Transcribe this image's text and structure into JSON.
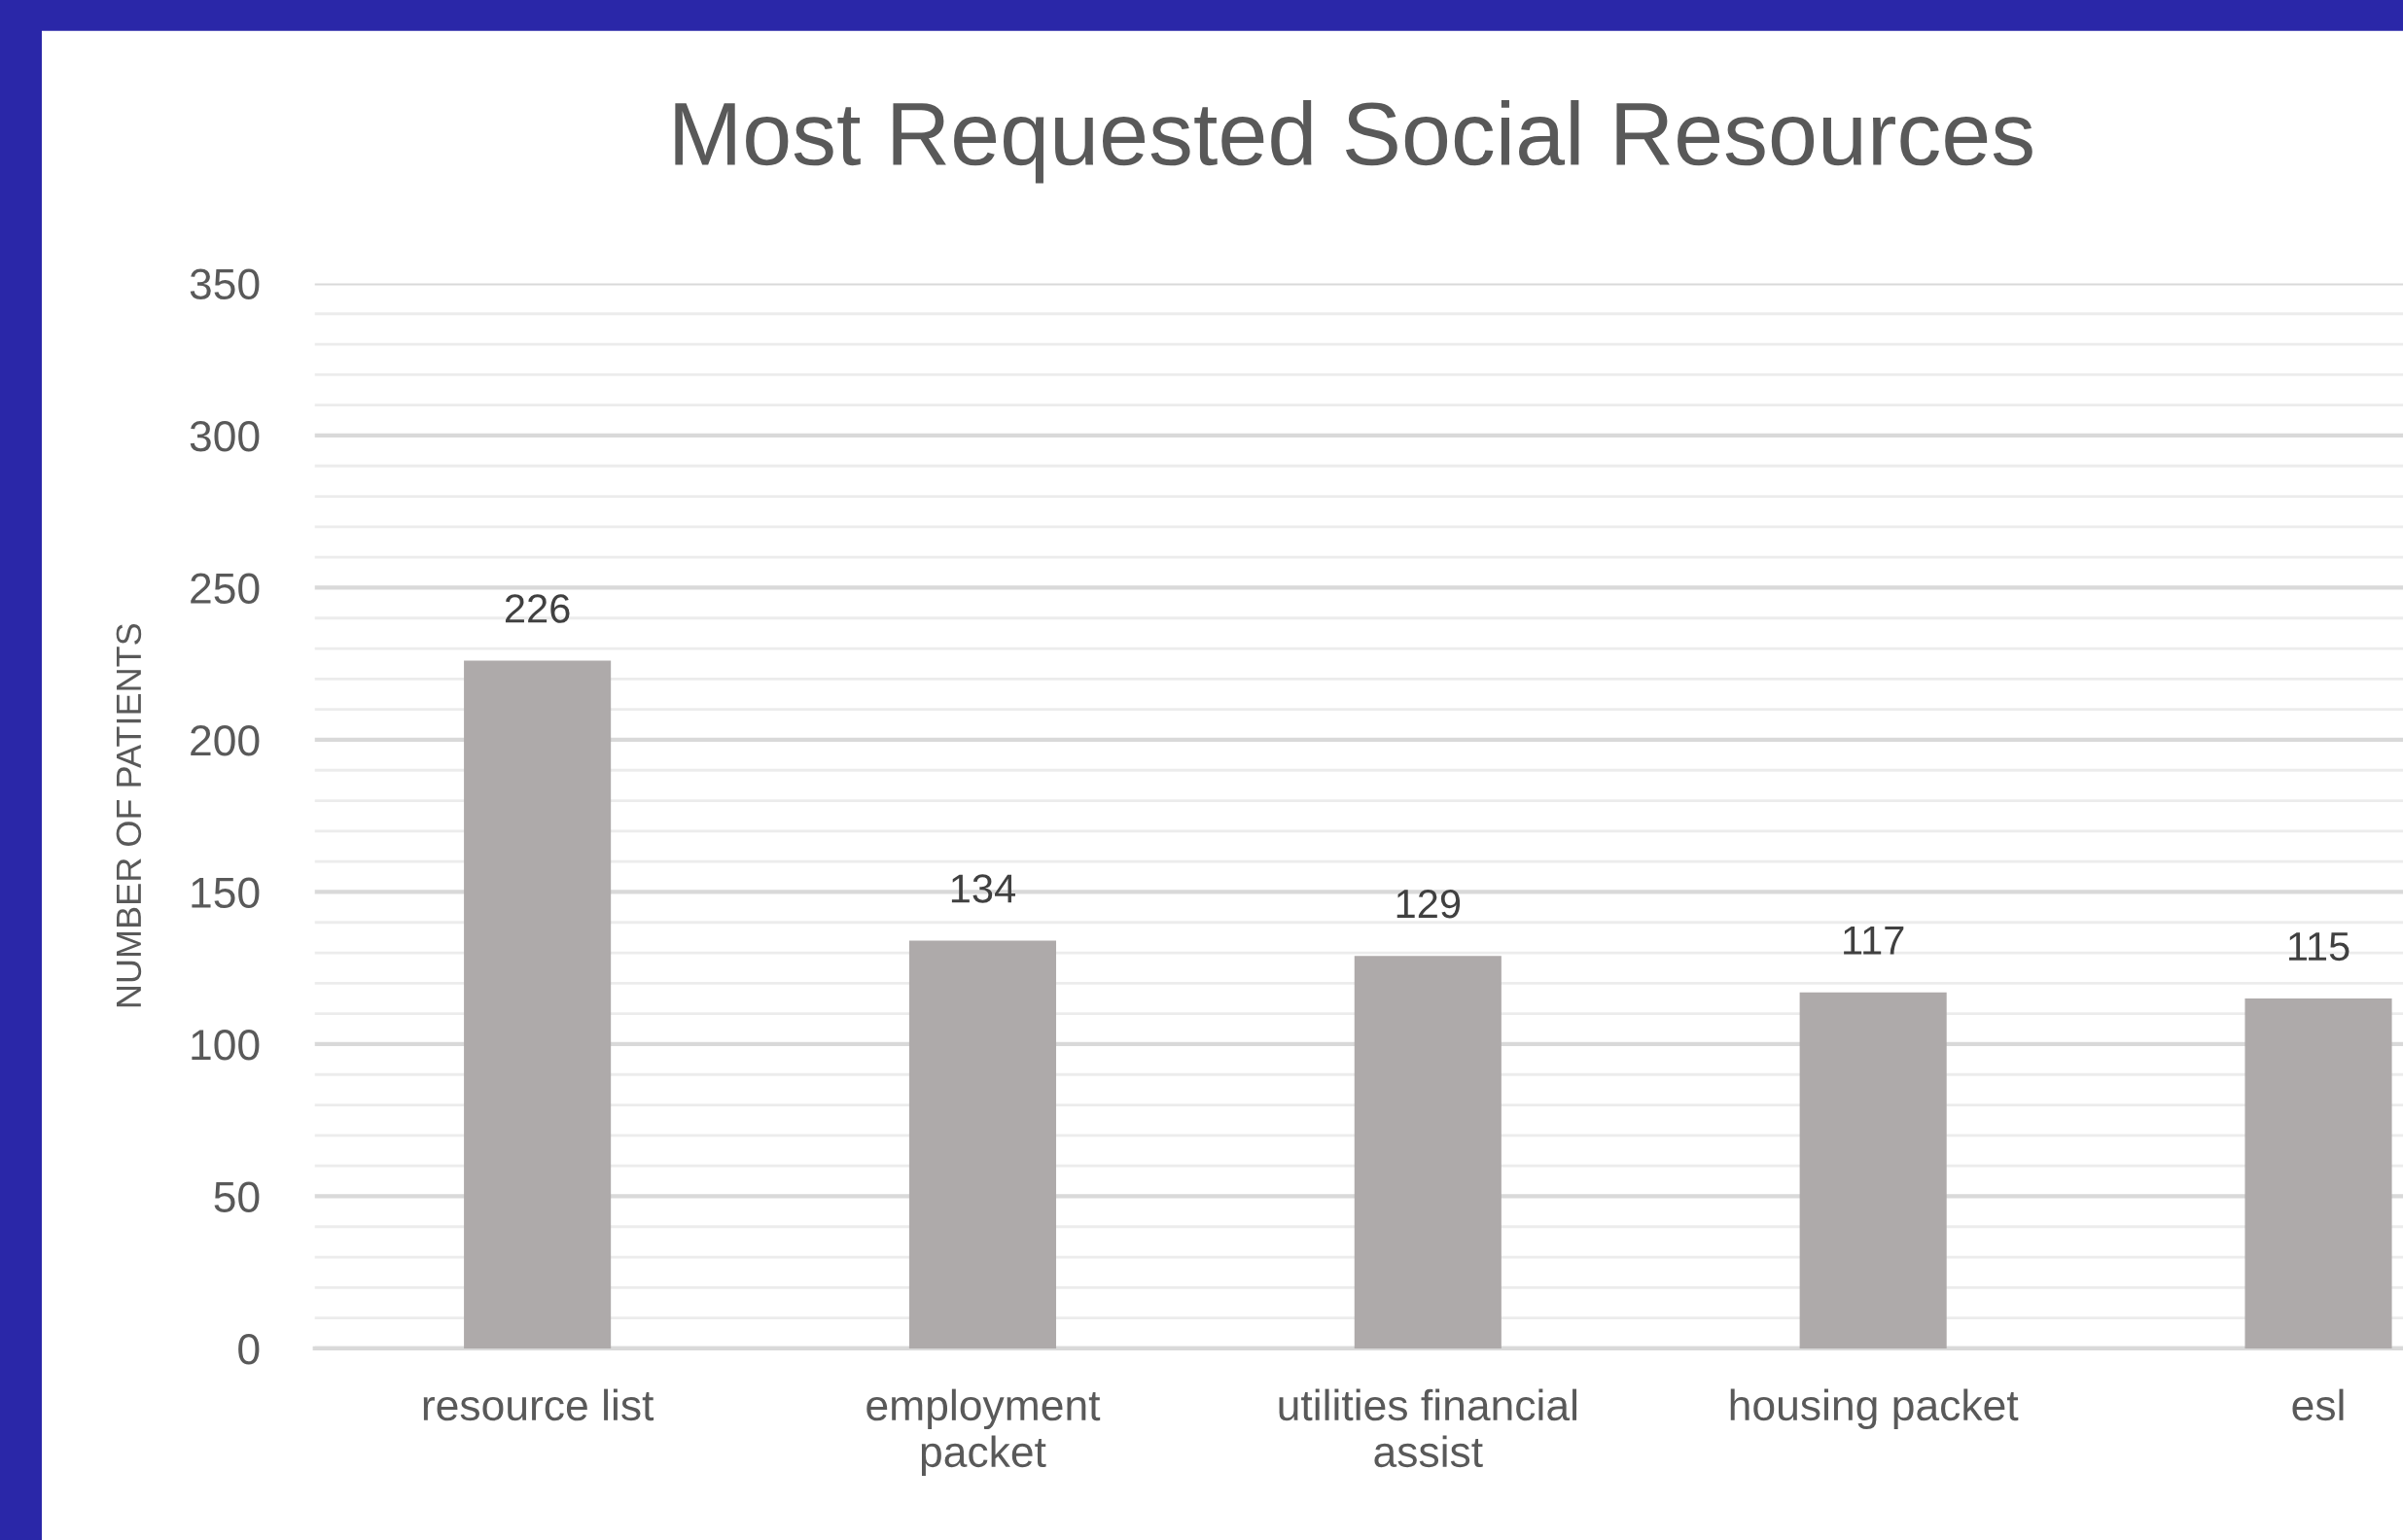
{
  "chart_data": {
    "type": "bar",
    "title": "Most Requested Social Resources",
    "ylabel": "NUMBER OF PATIENTS",
    "categories": [
      "resource list",
      "employment\npacket",
      "utilities financial\nassist",
      "housing packet",
      "esl"
    ],
    "values": [
      226,
      134,
      129,
      117,
      115
    ],
    "color": "#aeaaaa",
    "data_labels": true,
    "ylim": [
      0,
      350
    ],
    "yticks": [
      0,
      50,
      100,
      150,
      200,
      250,
      300,
      350
    ],
    "grid": "y"
  }
}
